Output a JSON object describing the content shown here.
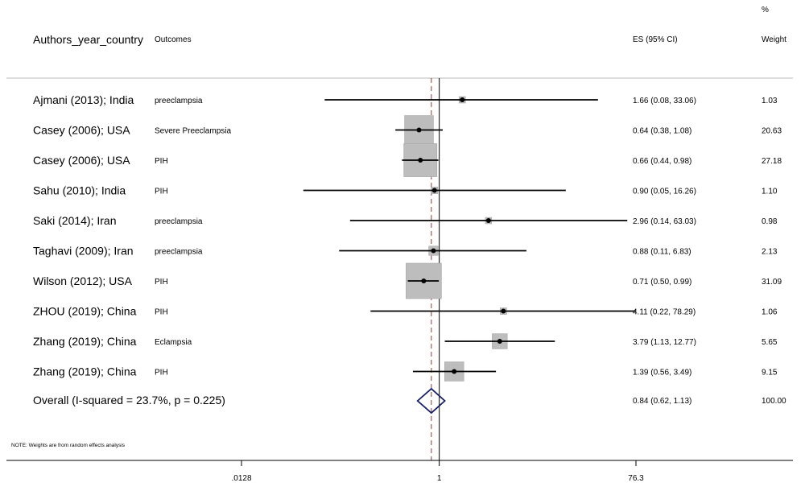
{
  "header": {
    "study_col": "Authors_year_country",
    "outcome_col": "Outcomes",
    "es_col": "ES (95% CI)",
    "weight_pct": "%",
    "weight_col": "Weight"
  },
  "chart_data": {
    "type": "forest",
    "scale": "log",
    "x_ticks": [
      {
        "value": 0.0128,
        "label": ".0128"
      },
      {
        "value": 1,
        "label": "1"
      },
      {
        "value": 76.3,
        "label": "76.3"
      }
    ],
    "xlim": [
      0.0128,
      76.3
    ],
    "null_line": 1,
    "studies": [
      {
        "label": "Ajmani (2013); India",
        "outcome": "preeclampsia",
        "es": 1.66,
        "lo": 0.08,
        "hi": 33.06,
        "es_text": "1.66 (0.08, 33.06)",
        "weight": 1.03,
        "weight_text": "1.03"
      },
      {
        "label": "Casey (2006); USA",
        "outcome": "Severe Preeclampsia",
        "es": 0.64,
        "lo": 0.38,
        "hi": 1.08,
        "es_text": "0.64 (0.38, 1.08)",
        "weight": 20.63,
        "weight_text": "20.63"
      },
      {
        "label": "Casey (2006); USA",
        "outcome": "PIH",
        "es": 0.66,
        "lo": 0.44,
        "hi": 0.98,
        "es_text": "0.66 (0.44, 0.98)",
        "weight": 27.18,
        "weight_text": "27.18"
      },
      {
        "label": "Sahu (2010); India",
        "outcome": "PIH",
        "es": 0.9,
        "lo": 0.05,
        "hi": 16.26,
        "es_text": "0.90 (0.05, 16.26)",
        "weight": 1.1,
        "weight_text": "1.10"
      },
      {
        "label": "Saki (2014); Iran",
        "outcome": "preeclampsia",
        "es": 2.96,
        "lo": 0.14,
        "hi": 63.03,
        "es_text": "2.96 (0.14, 63.03)",
        "weight": 0.98,
        "weight_text": "0.98"
      },
      {
        "label": "Taghavi (2009); Iran",
        "outcome": "preeclampsia",
        "es": 0.88,
        "lo": 0.11,
        "hi": 6.83,
        "es_text": "0.88 (0.11, 6.83)",
        "weight": 2.13,
        "weight_text": "2.13"
      },
      {
        "label": "Wilson (2012); USA",
        "outcome": "PIH",
        "es": 0.71,
        "lo": 0.5,
        "hi": 0.99,
        "es_text": "0.71 (0.50, 0.99)",
        "weight": 31.09,
        "weight_text": "31.09"
      },
      {
        "label": "ZHOU (2019); China",
        "outcome": "PIH",
        "es": 4.11,
        "lo": 0.22,
        "hi": 78.29,
        "es_text": "4.11 (0.22, 78.29)",
        "weight": 1.06,
        "weight_text": "1.06"
      },
      {
        "label": "Zhang (2019); China",
        "outcome": "Eclampsia",
        "es": 3.79,
        "lo": 1.13,
        "hi": 12.77,
        "es_text": "3.79 (1.13, 12.77)",
        "weight": 5.65,
        "weight_text": "5.65"
      },
      {
        "label": "Zhang (2019); China",
        "outcome": "PIH",
        "es": 1.39,
        "lo": 0.56,
        "hi": 3.49,
        "es_text": "1.39 (0.56, 3.49)",
        "weight": 9.15,
        "weight_text": "9.15"
      }
    ],
    "overall": {
      "label": "Overall  (I-squared = 23.7%, p = 0.225)",
      "es": 0.84,
      "lo": 0.62,
      "hi": 1.13,
      "es_text": "0.84 (0.62, 1.13)",
      "weight_text": "100.00"
    },
    "note": "NOTE: Weights are from random effects analysis",
    "colors": {
      "box": "#bdbdbd",
      "box_stroke": "#a6a6a6",
      "line": "#000000",
      "diamond": "#1a1f66",
      "overall_line": "#8b3a3a",
      "axis": "#000000"
    }
  }
}
